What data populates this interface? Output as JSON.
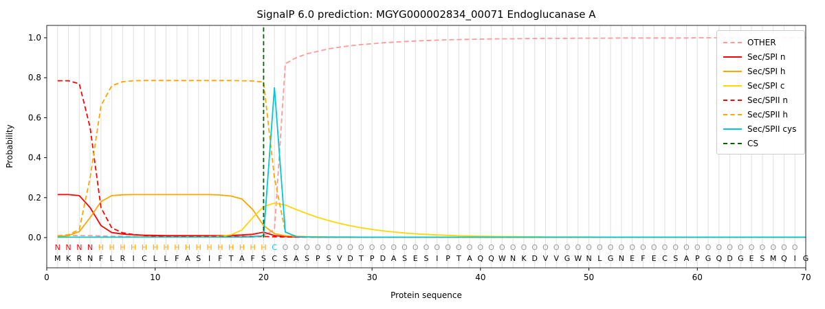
{
  "chart_data": {
    "type": "line",
    "title": "SignalP 6.0 prediction: MGYG000002834_00071 Endoglucanase A",
    "xlabel": "Protein sequence",
    "ylabel": "Probability",
    "xlim": [
      0,
      70
    ],
    "ylim": [
      -0.15,
      1.06
    ],
    "x_ticks": [
      0,
      10,
      20,
      30,
      40,
      50,
      60,
      70
    ],
    "y_ticks": [
      0.0,
      0.2,
      0.4,
      0.6,
      0.8,
      1.0
    ],
    "grid": "vertical line per residue, light gray",
    "legend_position": "upper right",
    "sequence": "MKRNFLRICLLFASIFTAFSCSASPSVDTPDASESIPTAQQWNKDVVGWNLGNEFECSAPGQDGESMQIG",
    "annotation": "NNNNHHHHHHHHHHHHHHHHCOOOOOOOOOOOOOOOOOOOOOOOOOOOOOOOOOOOOOOOOOOOOOOOO",
    "annotation_colors": {
      "N": "#ff0000",
      "H": "#ffa500",
      "C": "#00c8d4",
      "O": "#999999"
    },
    "cs": {
      "label": "CS",
      "position": 20,
      "color": "#006400",
      "dash": true
    },
    "series": [
      {
        "name": "OTHER",
        "color": "#ff9999",
        "dash": true,
        "values": [
          0.01,
          0.01,
          0.01,
          0.01,
          0.008,
          0.007,
          0.006,
          0.006,
          0.006,
          0.006,
          0.006,
          0.006,
          0.006,
          0.006,
          0.006,
          0.006,
          0.006,
          0.007,
          0.008,
          0.01,
          0.04,
          0.87,
          0.9,
          0.92,
          0.932,
          0.945,
          0.953,
          0.96,
          0.966,
          0.97,
          0.975,
          0.978,
          0.981,
          0.984,
          0.986,
          0.988,
          0.99,
          0.991,
          0.992,
          0.993,
          0.994,
          0.995,
          0.995,
          0.996,
          0.996,
          0.997,
          0.997,
          0.997,
          0.998,
          0.998,
          0.998,
          0.998,
          0.999,
          0.999,
          0.999,
          0.999,
          0.999,
          0.999,
          0.999,
          1.0,
          1.0,
          1.0,
          1.0,
          1.0,
          1.0,
          1.0,
          1.0,
          1.0,
          1.0,
          1.0
        ]
      },
      {
        "name": "Sec/SPI n",
        "color": "#ff0000",
        "dash": false,
        "values": [
          0.215,
          0.215,
          0.21,
          0.15,
          0.06,
          0.025,
          0.018,
          0.014,
          0.012,
          0.011,
          0.01,
          0.01,
          0.01,
          0.01,
          0.01,
          0.01,
          0.011,
          0.013,
          0.017,
          0.027,
          0.01,
          0.005,
          0.003,
          0.003,
          0.002,
          0.002,
          0.002,
          0.002,
          0.002,
          0.002,
          0.002,
          0.002,
          0.002,
          0.002,
          0.002,
          0.002,
          0.002,
          0.002,
          0.002,
          0.002,
          0.002,
          0.002,
          0.002,
          0.002,
          0.002,
          0.002,
          0.002,
          0.002,
          0.002,
          0.002,
          0.002,
          0.002,
          0.002,
          0.002,
          0.002,
          0.002,
          0.002,
          0.002,
          0.002,
          0.002,
          0.002,
          0.002,
          0.002,
          0.002,
          0.002,
          0.002,
          0.002,
          0.002,
          0.002,
          0.002
        ]
      },
      {
        "name": "Sec/SPI h",
        "color": "#ffa500",
        "dash": false,
        "values": [
          0.004,
          0.01,
          0.03,
          0.1,
          0.18,
          0.21,
          0.214,
          0.215,
          0.215,
          0.215,
          0.215,
          0.215,
          0.215,
          0.215,
          0.215,
          0.213,
          0.208,
          0.193,
          0.14,
          0.06,
          0.02,
          0.009,
          0.006,
          0.004,
          0.004,
          0.003,
          0.003,
          0.003,
          0.002,
          0.002,
          0.002,
          0.002,
          0.002,
          0.002,
          0.002,
          0.002,
          0.002,
          0.002,
          0.002,
          0.002,
          0.002,
          0.002,
          0.002,
          0.002,
          0.002,
          0.002,
          0.002,
          0.002,
          0.002,
          0.002,
          0.002,
          0.002,
          0.002,
          0.002,
          0.002,
          0.002,
          0.002,
          0.002,
          0.002,
          0.002,
          0.002,
          0.002,
          0.002,
          0.002,
          0.002,
          0.002,
          0.002,
          0.002,
          0.002,
          0.002
        ]
      },
      {
        "name": "Sec/SPI c",
        "color": "#ffd700",
        "dash": false,
        "values": [
          0.002,
          0.002,
          0.002,
          0.002,
          0.002,
          0.002,
          0.002,
          0.003,
          0.003,
          0.003,
          0.003,
          0.003,
          0.004,
          0.004,
          0.005,
          0.007,
          0.014,
          0.038,
          0.1,
          0.155,
          0.172,
          0.163,
          0.141,
          0.12,
          0.101,
          0.085,
          0.071,
          0.059,
          0.049,
          0.041,
          0.034,
          0.028,
          0.023,
          0.019,
          0.016,
          0.013,
          0.011,
          0.009,
          0.008,
          0.007,
          0.006,
          0.005,
          0.005,
          0.004,
          0.004,
          0.003,
          0.003,
          0.003,
          0.003,
          0.003,
          0.002,
          0.002,
          0.002,
          0.002,
          0.002,
          0.002,
          0.002,
          0.002,
          0.002,
          0.002,
          0.002,
          0.002,
          0.002,
          0.002,
          0.002,
          0.002,
          0.002,
          0.002,
          0.002,
          0.002
        ]
      },
      {
        "name": "Sec/SPII n",
        "color": "#ff0000",
        "dash": true,
        "values": [
          0.785,
          0.785,
          0.77,
          0.55,
          0.15,
          0.048,
          0.024,
          0.015,
          0.01,
          0.008,
          0.007,
          0.006,
          0.006,
          0.005,
          0.005,
          0.005,
          0.005,
          0.005,
          0.005,
          0.005,
          0.004,
          0.003,
          0.002,
          0.002,
          0.002,
          0.002,
          0.002,
          0.002,
          0.002,
          0.002,
          0.002,
          0.002,
          0.002,
          0.002,
          0.002,
          0.002,
          0.002,
          0.002,
          0.002,
          0.002,
          0.002,
          0.002,
          0.002,
          0.002,
          0.002,
          0.002,
          0.002,
          0.002,
          0.002,
          0.002,
          0.002,
          0.002,
          0.002,
          0.002,
          0.002,
          0.002,
          0.002,
          0.002,
          0.002,
          0.002,
          0.002,
          0.002,
          0.002,
          0.002,
          0.002,
          0.002,
          0.002,
          0.002,
          0.002,
          0.002
        ]
      },
      {
        "name": "Sec/SPII h",
        "color": "#ffa500",
        "dash": true,
        "values": [
          0.008,
          0.014,
          0.04,
          0.3,
          0.66,
          0.76,
          0.78,
          0.785,
          0.786,
          0.786,
          0.786,
          0.786,
          0.786,
          0.786,
          0.786,
          0.786,
          0.786,
          0.785,
          0.784,
          0.778,
          0.3,
          0.028,
          0.007,
          0.004,
          0.003,
          0.003,
          0.002,
          0.002,
          0.002,
          0.002,
          0.002,
          0.002,
          0.002,
          0.002,
          0.002,
          0.002,
          0.002,
          0.002,
          0.002,
          0.002,
          0.002,
          0.002,
          0.002,
          0.002,
          0.002,
          0.002,
          0.002,
          0.002,
          0.002,
          0.002,
          0.002,
          0.002,
          0.002,
          0.002,
          0.002,
          0.002,
          0.002,
          0.002,
          0.002,
          0.002,
          0.002,
          0.002,
          0.002,
          0.002,
          0.002,
          0.002,
          0.002,
          0.002,
          0.002,
          0.002
        ]
      },
      {
        "name": "Sec/SPII cys",
        "color": "#00c8d4",
        "dash": false,
        "values": [
          0.002,
          0.002,
          0.002,
          0.002,
          0.002,
          0.002,
          0.002,
          0.002,
          0.002,
          0.002,
          0.002,
          0.002,
          0.002,
          0.002,
          0.002,
          0.002,
          0.002,
          0.002,
          0.003,
          0.01,
          0.75,
          0.028,
          0.005,
          0.003,
          0.002,
          0.002,
          0.002,
          0.002,
          0.002,
          0.002,
          0.002,
          0.002,
          0.002,
          0.002,
          0.002,
          0.002,
          0.002,
          0.002,
          0.002,
          0.002,
          0.002,
          0.002,
          0.002,
          0.002,
          0.002,
          0.002,
          0.002,
          0.002,
          0.002,
          0.002,
          0.002,
          0.002,
          0.002,
          0.002,
          0.002,
          0.002,
          0.002,
          0.002,
          0.002,
          0.002,
          0.002,
          0.002,
          0.002,
          0.002,
          0.002,
          0.002,
          0.002,
          0.002,
          0.002,
          0.002
        ]
      }
    ]
  },
  "legend": {
    "entries": [
      {
        "label": "OTHER",
        "color": "#ff9999",
        "dash": true
      },
      {
        "label": "Sec/SPI n",
        "color": "#ff0000",
        "dash": false
      },
      {
        "label": "Sec/SPI h",
        "color": "#ffa500",
        "dash": false
      },
      {
        "label": "Sec/SPI c",
        "color": "#ffd700",
        "dash": false
      },
      {
        "label": "Sec/SPII n",
        "color": "#ff0000",
        "dash": true
      },
      {
        "label": "Sec/SPII h",
        "color": "#ffa500",
        "dash": true
      },
      {
        "label": "Sec/SPII cys",
        "color": "#00c8d4",
        "dash": false
      },
      {
        "label": "CS",
        "color": "#006400",
        "dash": true
      }
    ]
  }
}
